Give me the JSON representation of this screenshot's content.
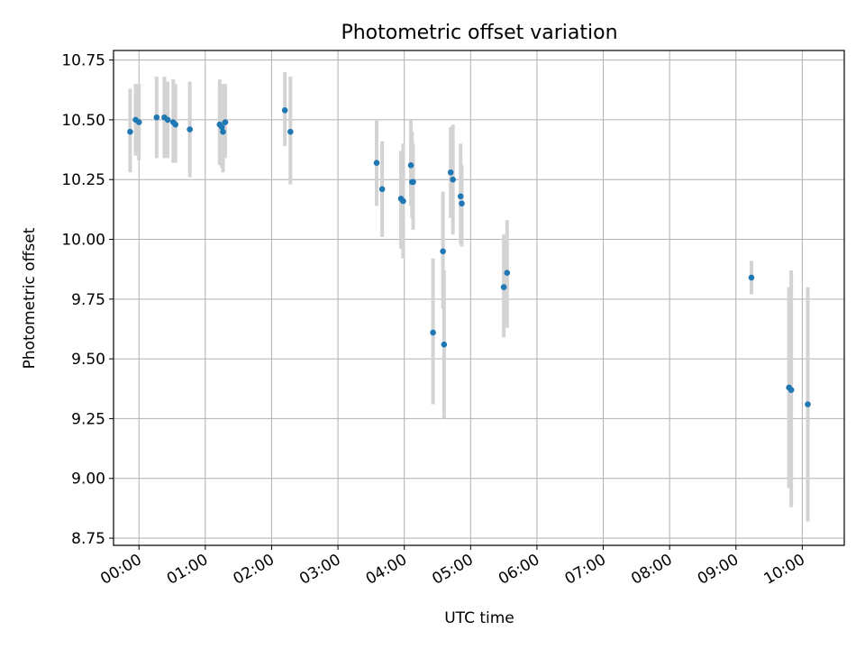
{
  "chart_data": {
    "type": "scatter",
    "title": "Photometric offset variation",
    "xlabel": "UTC time",
    "ylabel": "Photometric offset",
    "x_ticks": [
      "00:00",
      "01:00",
      "02:00",
      "03:00",
      "04:00",
      "05:00",
      "06:00",
      "07:00",
      "08:00",
      "09:00",
      "10:00"
    ],
    "y_ticks": [
      "8.75",
      "9.00",
      "9.25",
      "9.50",
      "9.75",
      "10.00",
      "10.25",
      "10.50",
      "10.75"
    ],
    "xlim": [
      "23:37",
      "10:38"
    ],
    "ylim": [
      8.72,
      10.79
    ],
    "grid": true,
    "series": [
      {
        "point_color": "#1f77b4",
        "errorbar_color": "#d3d3d3",
        "points": [
          {
            "x": "23:52",
            "y": 10.45,
            "err_low": 10.28,
            "err_high": 10.63
          },
          {
            "x": "23:57",
            "y": 10.5,
            "err_low": 10.35,
            "err_high": 10.65
          },
          {
            "x": "00:00",
            "y": 10.49,
            "err_low": 10.33,
            "err_high": 10.65
          },
          {
            "x": "00:16",
            "y": 10.51,
            "err_low": 10.34,
            "err_high": 10.68
          },
          {
            "x": "00:23",
            "y": 10.51,
            "err_low": 10.34,
            "err_high": 10.68
          },
          {
            "x": "00:26",
            "y": 10.5,
            "err_low": 10.34,
            "err_high": 10.66
          },
          {
            "x": "00:31",
            "y": 10.49,
            "err_low": 10.32,
            "err_high": 10.67
          },
          {
            "x": "00:33",
            "y": 10.48,
            "err_low": 10.32,
            "err_high": 10.65
          },
          {
            "x": "00:46",
            "y": 10.46,
            "err_low": 10.26,
            "err_high": 10.66
          },
          {
            "x": "01:13",
            "y": 10.48,
            "err_low": 10.31,
            "err_high": 10.67
          },
          {
            "x": "01:15",
            "y": 10.47,
            "err_low": 10.3,
            "err_high": 10.65
          },
          {
            "x": "01:16",
            "y": 10.45,
            "err_low": 10.28,
            "err_high": 10.63
          },
          {
            "x": "01:18",
            "y": 10.49,
            "err_low": 10.34,
            "err_high": 10.65
          },
          {
            "x": "02:12",
            "y": 10.54,
            "err_low": 10.39,
            "err_high": 10.7
          },
          {
            "x": "02:17",
            "y": 10.45,
            "err_low": 10.23,
            "err_high": 10.68
          },
          {
            "x": "03:35",
            "y": 10.32,
            "err_low": 10.14,
            "err_high": 10.5
          },
          {
            "x": "03:40",
            "y": 10.21,
            "err_low": 10.01,
            "err_high": 10.41
          },
          {
            "x": "03:57",
            "y": 10.17,
            "err_low": 9.96,
            "err_high": 10.37
          },
          {
            "x": "03:59",
            "y": 10.16,
            "err_low": 9.92,
            "err_high": 10.4
          },
          {
            "x": "04:06",
            "y": 10.31,
            "err_low": 10.14,
            "err_high": 10.5
          },
          {
            "x": "04:07",
            "y": 10.24,
            "err_low": 10.09,
            "err_high": 10.45
          },
          {
            "x": "04:08",
            "y": 10.24,
            "err_low": 10.04,
            "err_high": 10.4
          },
          {
            "x": "04:26",
            "y": 9.61,
            "err_low": 9.31,
            "err_high": 9.92
          },
          {
            "x": "04:35",
            "y": 9.95,
            "err_low": 9.71,
            "err_high": 10.2
          },
          {
            "x": "04:36",
            "y": 9.56,
            "err_low": 9.25,
            "err_high": 9.87
          },
          {
            "x": "04:42",
            "y": 10.28,
            "err_low": 10.09,
            "err_high": 10.47
          },
          {
            "x": "04:44",
            "y": 10.25,
            "err_low": 10.02,
            "err_high": 10.48
          },
          {
            "x": "04:51",
            "y": 10.18,
            "err_low": 9.98,
            "err_high": 10.4
          },
          {
            "x": "04:52",
            "y": 10.15,
            "err_low": 9.97,
            "err_high": 10.31
          },
          {
            "x": "05:30",
            "y": 9.8,
            "err_low": 9.59,
            "err_high": 10.02
          },
          {
            "x": "05:33",
            "y": 9.86,
            "err_low": 9.63,
            "err_high": 10.08
          },
          {
            "x": "09:14",
            "y": 9.84,
            "err_low": 9.77,
            "err_high": 9.91
          },
          {
            "x": "09:48",
            "y": 9.38,
            "err_low": 8.96,
            "err_high": 9.8
          },
          {
            "x": "09:50",
            "y": 9.37,
            "err_low": 8.88,
            "err_high": 9.87
          },
          {
            "x": "10:05",
            "y": 9.31,
            "err_low": 8.82,
            "err_high": 9.8
          }
        ]
      }
    ]
  }
}
